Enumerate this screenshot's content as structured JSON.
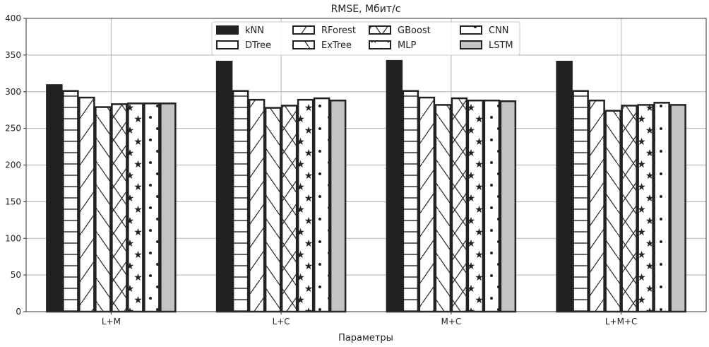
{
  "chart_data": {
    "type": "bar",
    "title": "RMSE, Мбит/с",
    "xlabel": "Параметры",
    "ylabel": "",
    "ylim": [
      0,
      400
    ],
    "yticks": [
      0,
      50,
      100,
      150,
      200,
      250,
      300,
      350,
      400
    ],
    "grid": true,
    "legend_placement": "top-center",
    "categories": [
      "L+M",
      "L+C",
      "M+C",
      "L+M+C"
    ],
    "series": [
      {
        "name": "kNN",
        "pattern": "solid-dark",
        "color": "#222222",
        "values": [
          309,
          341,
          342,
          341
        ]
      },
      {
        "name": "DTree",
        "pattern": "horizontal-lines",
        "color": "#ffffff",
        "values": [
          301,
          301,
          301,
          301
        ]
      },
      {
        "name": "RForest",
        "pattern": "forward-diagonal",
        "color": "#ffffff",
        "values": [
          292,
          289,
          292,
          288
        ]
      },
      {
        "name": "ExTree",
        "pattern": "back-diagonal",
        "color": "#ffffff",
        "values": [
          279,
          278,
          282,
          274
        ]
      },
      {
        "name": "GBoost",
        "pattern": "crosshatch",
        "color": "#ffffff",
        "values": [
          283,
          281,
          291,
          281
        ]
      },
      {
        "name": "MLP",
        "pattern": "stars",
        "color": "#ffffff",
        "values": [
          284,
          289,
          288,
          282
        ]
      },
      {
        "name": "CNN",
        "pattern": "dots",
        "color": "#ffffff",
        "values": [
          284,
          291,
          288,
          285
        ]
      },
      {
        "name": "LSTM",
        "pattern": "solid-gray",
        "color": "#c4c4c4",
        "values": [
          284,
          288,
          287,
          282
        ]
      }
    ]
  }
}
